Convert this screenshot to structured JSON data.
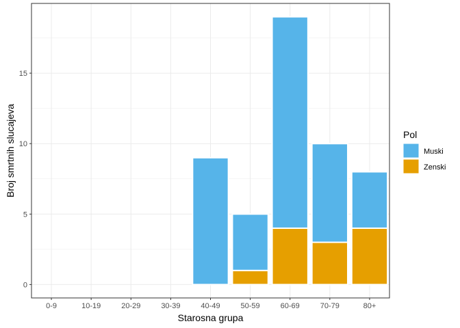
{
  "chart_data": {
    "type": "bar",
    "stacked": true,
    "categories": [
      "0-9",
      "10-19",
      "20-29",
      "30-39",
      "40-49",
      "50-59",
      "60-69",
      "70-79",
      "80+"
    ],
    "series": [
      {
        "name": "Muski",
        "color": "#56B4E9",
        "values": [
          0,
          0,
          0,
          0,
          9,
          4,
          15,
          7,
          4
        ]
      },
      {
        "name": "Zenski",
        "color": "#E69F00",
        "values": [
          0,
          0,
          0,
          0,
          0,
          1,
          4,
          3,
          4
        ]
      }
    ],
    "xlabel": "Starosna grupa",
    "ylabel": "Broj smrtnih slucajeva",
    "ylim": [
      -0.95,
      19.95
    ],
    "yticks": [
      0,
      5,
      10,
      15
    ],
    "grid": true,
    "legend": {
      "title": "Pol",
      "position": "right"
    }
  }
}
